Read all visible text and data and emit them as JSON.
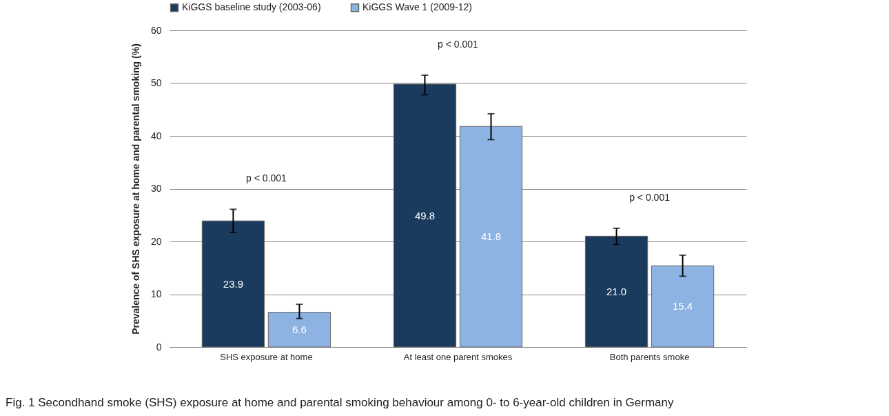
{
  "chart_data": {
    "type": "bar",
    "ylabel": "Prevalence of SHS exposure at home and parental smoking (%)",
    "categories": [
      "SHS exposure at home",
      "At least one parent smokes",
      "Both parents smoke"
    ],
    "series": [
      {
        "name": "KiGGS baseline study (2003-06)",
        "color": "#1a3a5e",
        "values": [
          23.9,
          49.8,
          21.0
        ],
        "value_labels": [
          "23.9",
          "49.8",
          "21.0"
        ],
        "errors": [
          [
            21.7,
            26.1
          ],
          [
            47.8,
            51.5
          ],
          [
            19.4,
            22.5
          ]
        ]
      },
      {
        "name": "KiGGS Wave 1 (2009-12)",
        "color": "#8db3e2",
        "values": [
          6.6,
          41.8,
          15.4
        ],
        "value_labels": [
          "6.6",
          "41.8",
          "15.4"
        ],
        "errors": [
          [
            5.4,
            8.1
          ],
          [
            39.3,
            44.2
          ],
          [
            13.4,
            17.4
          ]
        ]
      }
    ],
    "ylim": [
      0,
      60
    ],
    "yticks": [
      0,
      10,
      20,
      30,
      40,
      50,
      60
    ],
    "grid": "y",
    "legend": "top",
    "annotations": [
      "p < 0.001",
      "p < 0.001",
      "p < 0.001",
      "Fig. 1 Secondhand smoke (SHS) exposure at home and parental smoking behaviour among 0- to 6-year-old children in Germany"
    ]
  }
}
